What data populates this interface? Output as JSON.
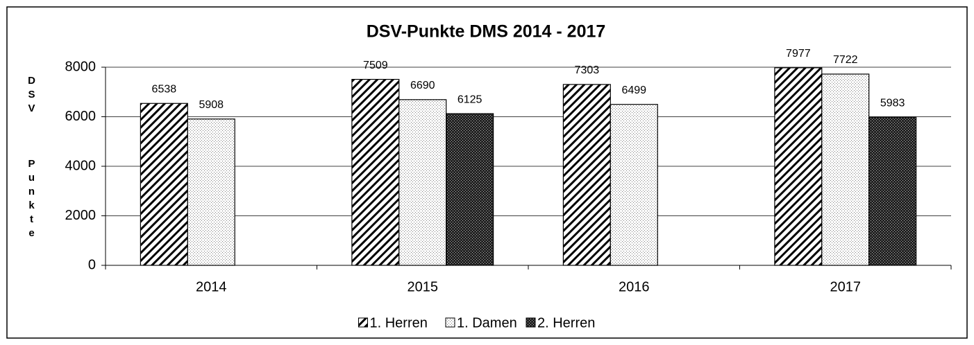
{
  "chart_data": {
    "type": "bar",
    "title": "DSV-Punkte DMS 2014 - 2017",
    "y_label": "DSV Punkte",
    "categories": [
      "2014",
      "2015",
      "2016",
      "2017"
    ],
    "series": [
      {
        "name": "1. Herren",
        "color": "#000000",
        "values": [
          6538,
          7509,
          7303,
          7977
        ]
      },
      {
        "name": "1. Damen",
        "color": "#999999",
        "values": [
          5908,
          6690,
          6499,
          7722
        ]
      },
      {
        "name": "2. Herren",
        "color": "#333333",
        "values": [
          null,
          6125,
          null,
          5983
        ]
      }
    ],
    "ylim": [
      0,
      8000
    ],
    "yticks": [
      0,
      2000,
      4000,
      6000,
      8000
    ],
    "grid": true,
    "legend": "bottom"
  }
}
